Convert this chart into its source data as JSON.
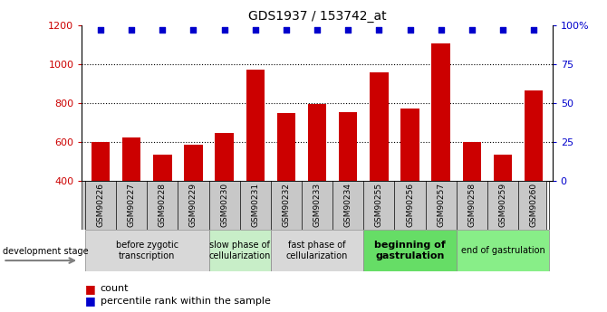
{
  "title": "GDS1937 / 153742_at",
  "samples": [
    "GSM90226",
    "GSM90227",
    "GSM90228",
    "GSM90229",
    "GSM90230",
    "GSM90231",
    "GSM90232",
    "GSM90233",
    "GSM90234",
    "GSM90255",
    "GSM90256",
    "GSM90257",
    "GSM90258",
    "GSM90259",
    "GSM90260"
  ],
  "counts": [
    600,
    625,
    535,
    585,
    645,
    970,
    750,
    795,
    755,
    955,
    770,
    1105,
    600,
    535,
    865
  ],
  "bar_color": "#cc0000",
  "dot_color": "#0000cc",
  "ylim_left": [
    400,
    1200
  ],
  "ylim_right": [
    0,
    100
  ],
  "yticks_left": [
    400,
    600,
    800,
    1000,
    1200
  ],
  "yticks_right": [
    0,
    25,
    50,
    75,
    100
  ],
  "yright_labels": [
    "0",
    "25",
    "50",
    "75",
    "100%"
  ],
  "grid_values": [
    600,
    800,
    1000
  ],
  "stages": [
    {
      "label": "before zygotic\ntranscription",
      "samples": [
        "GSM90226",
        "GSM90227",
        "GSM90228",
        "GSM90229"
      ],
      "color": "#d8d8d8"
    },
    {
      "label": "slow phase of\ncellularization",
      "samples": [
        "GSM90230",
        "GSM90231"
      ],
      "color": "#c8eec8"
    },
    {
      "label": "fast phase of\ncellularization",
      "samples": [
        "GSM90232",
        "GSM90233",
        "GSM90234"
      ],
      "color": "#d8d8d8"
    },
    {
      "label": "beginning of\ngastrulation",
      "samples": [
        "GSM90255",
        "GSM90256",
        "GSM90257"
      ],
      "color": "#66dd66"
    },
    {
      "label": "end of gastrulation",
      "samples": [
        "GSM90258",
        "GSM90259",
        "GSM90260"
      ],
      "color": "#88ee88"
    }
  ],
  "dev_stage_label": "development stage",
  "legend_count_label": "count",
  "legend_pct_label": "percentile rank within the sample",
  "dot_pct_value": 97,
  "xtick_box_color": "#c8c8c8"
}
